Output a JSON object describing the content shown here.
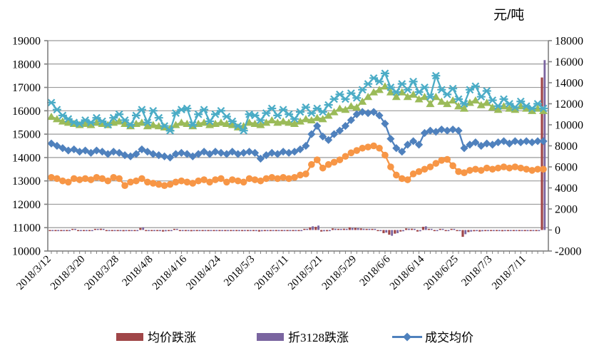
{
  "unit_label": "元/吨",
  "colors": {
    "grid": "#9a9a9a",
    "axis": "#808080",
    "bar_red": "#A04648",
    "bar_purple": "#7A65A0",
    "line_blue": "#4F81BD",
    "line_teal": "#4BACC6",
    "line_green": "#9BBB59",
    "line_orange": "#F79646"
  },
  "chart_data": {
    "type": "combo",
    "title": "",
    "unit": "元/吨",
    "n_points": 88,
    "x_label_every": 6,
    "x_tick_labels": [
      "2018/3/12",
      "2018/3/20",
      "2018/3/28",
      "2018/4/8",
      "2018/4/16",
      "2018/4/24",
      "2018/5/3",
      "2018/5/11",
      "2018/5/21",
      "2018/5/29",
      "2018/6/6",
      "2018/6/14",
      "2018/6/25",
      "2018/7/3",
      "2018/7/11"
    ],
    "left_axis": {
      "min": 10000,
      "max": 19000,
      "step": 1000,
      "ticks": [
        "19000",
        "18000",
        "17000",
        "16000",
        "15000",
        "14000",
        "13000",
        "12000",
        "11000",
        "10000"
      ]
    },
    "right_axis": {
      "min": -2000,
      "max": 18000,
      "step": 2000,
      "ticks": [
        "18000",
        "16000",
        "14000",
        "12000",
        "10000",
        "8000",
        "6000",
        "4000",
        "2000",
        "0",
        "-2000"
      ]
    },
    "legend": [
      {
        "label": "均价跌涨",
        "series": "avg-price-change",
        "swatch": "bar",
        "color": "#A04648"
      },
      {
        "label": "折3128跌涨",
        "series": "zhe3128-change",
        "swatch": "bar",
        "color": "#7A65A0"
      },
      {
        "label": "成交均价",
        "series": "deal-avg-price",
        "swatch": "line-diamond",
        "color": "#4F81BD"
      }
    ],
    "series": [
      {
        "id": "avg-price-change",
        "label": "均价跌涨",
        "type": "bar",
        "axis": "right",
        "color": "#A04648",
        "values": [
          -60,
          -80,
          -100,
          -60,
          80,
          -60,
          -70,
          -50,
          60,
          120,
          -80,
          -60,
          -90,
          -120,
          -70,
          -60,
          200,
          -100,
          -80,
          -70,
          -150,
          -90,
          100,
          -60,
          -80,
          -120,
          -70,
          -60,
          -90,
          -70,
          -80,
          -100,
          -60,
          -90,
          -110,
          -70,
          -80,
          -150,
          -60,
          -80,
          -70,
          -90,
          -60,
          -80,
          -70,
          100,
          250,
          300,
          -150,
          -120,
          150,
          100,
          120,
          250,
          200,
          150,
          100,
          80,
          -100,
          -300,
          -450,
          -350,
          -150,
          150,
          120,
          -150,
          300,
          100,
          -80,
          100,
          -60,
          80,
          -100,
          -650,
          -200,
          -120,
          -150,
          -80,
          -90,
          -100,
          -120,
          -80,
          -100,
          -60,
          -80,
          -100,
          -80,
          14500
        ]
      },
      {
        "id": "zhe3128-change",
        "label": "折3128跌涨",
        "type": "bar",
        "axis": "right",
        "color": "#7A65A0",
        "values": [
          -40,
          -60,
          -90,
          -50,
          60,
          -50,
          -60,
          -40,
          50,
          100,
          -60,
          -50,
          -70,
          -90,
          -60,
          -50,
          250,
          -80,
          -60,
          -50,
          -120,
          -70,
          80,
          -50,
          -60,
          -100,
          -60,
          -50,
          -70,
          -60,
          -70,
          -80,
          -50,
          -70,
          -90,
          -60,
          -70,
          -120,
          -50,
          -60,
          -60,
          -70,
          -50,
          -70,
          -60,
          80,
          350,
          420,
          -120,
          -100,
          120,
          80,
          100,
          200,
          180,
          120,
          80,
          60,
          -80,
          -250,
          -550,
          -300,
          -120,
          120,
          100,
          -120,
          350,
          80,
          -60,
          80,
          -50,
          60,
          -80,
          -400,
          -150,
          -100,
          -120,
          -60,
          -70,
          -80,
          -100,
          -60,
          -80,
          -50,
          -60,
          -80,
          -60,
          16150
        ]
      },
      {
        "id": "orange-avg",
        "label": "",
        "type": "line",
        "marker": "circle",
        "axis": "left",
        "color": "#F79646",
        "values": [
          13150,
          13100,
          13000,
          12950,
          13100,
          13050,
          13100,
          13050,
          13150,
          13100,
          13000,
          13150,
          13100,
          12800,
          12950,
          13000,
          13100,
          12950,
          12900,
          12850,
          12800,
          12850,
          12950,
          13000,
          12950,
          12900,
          13000,
          13050,
          12950,
          13050,
          13100,
          12950,
          13050,
          13000,
          12950,
          13100,
          13050,
          13000,
          13100,
          13150,
          13100,
          13150,
          13100,
          13150,
          13250,
          13300,
          13700,
          13900,
          13550,
          13700,
          13800,
          13900,
          14050,
          14200,
          14300,
          14400,
          14450,
          14500,
          14400,
          14100,
          13600,
          13250,
          13100,
          13050,
          13300,
          13400,
          13500,
          13600,
          13750,
          13880,
          13920,
          13650,
          13400,
          13350,
          13450,
          13500,
          13450,
          13550,
          13500,
          13550,
          13600,
          13550,
          13600,
          13550,
          13500,
          13450,
          13500,
          13500
        ]
      },
      {
        "id": "deal-avg-price",
        "label": "成交均价",
        "type": "line",
        "marker": "diamond",
        "axis": "left",
        "color": "#4F81BD",
        "values": [
          14600,
          14500,
          14400,
          14300,
          14350,
          14250,
          14300,
          14200,
          14300,
          14250,
          14150,
          14250,
          14200,
          14100,
          14050,
          14150,
          14350,
          14250,
          14150,
          14100,
          14050,
          14000,
          14150,
          14200,
          14150,
          14050,
          14150,
          14250,
          14150,
          14250,
          14200,
          14150,
          14250,
          14150,
          14200,
          14250,
          14200,
          13950,
          14100,
          14200,
          14150,
          14250,
          14200,
          14250,
          14350,
          14500,
          15000,
          15350,
          14900,
          14750,
          15000,
          15150,
          15350,
          15600,
          15850,
          15950,
          15900,
          15950,
          15800,
          15450,
          14800,
          14400,
          14250,
          14550,
          14700,
          14550,
          15050,
          15150,
          15100,
          15200,
          15150,
          15200,
          15150,
          14400,
          14550,
          14650,
          14500,
          14600,
          14550,
          14650,
          14700,
          14600,
          14700,
          14650,
          14700,
          14650,
          14700,
          14700
        ]
      },
      {
        "id": "green-index",
        "label": "",
        "type": "line",
        "marker": "triangle",
        "axis": "left",
        "color": "#9BBB59",
        "values": [
          15750,
          15650,
          15550,
          15500,
          15450,
          15400,
          15450,
          15400,
          15500,
          15450,
          15400,
          15500,
          15550,
          15450,
          15350,
          15450,
          15500,
          15350,
          15400,
          15350,
          15300,
          15250,
          15400,
          15500,
          15450,
          15350,
          15450,
          15500,
          15400,
          15450,
          15500,
          15450,
          15400,
          15300,
          15350,
          15500,
          15450,
          15400,
          15500,
          15600,
          15500,
          15550,
          15500,
          15450,
          15550,
          15650,
          15600,
          15700,
          15650,
          15800,
          15950,
          16100,
          16050,
          16200,
          16150,
          16400,
          16600,
          16800,
          16900,
          17050,
          16800,
          16600,
          16800,
          16600,
          16700,
          16500,
          16600,
          16300,
          16600,
          16400,
          16300,
          16450,
          16200,
          16100,
          16350,
          16450,
          16250,
          16350,
          16150,
          16050,
          16200,
          16100,
          16050,
          16200,
          16100,
          16000,
          16100,
          16000
        ]
      },
      {
        "id": "teal-index",
        "label": "",
        "type": "line",
        "marker": "asterisk",
        "axis": "left",
        "color": "#4BACC6",
        "values": [
          16350,
          16050,
          15800,
          15650,
          15500,
          15450,
          15600,
          15500,
          15700,
          15550,
          15400,
          15700,
          15850,
          15600,
          15400,
          15800,
          16050,
          15500,
          16000,
          15700,
          15350,
          15150,
          15900,
          16050,
          16100,
          15400,
          15850,
          16050,
          15550,
          15850,
          16000,
          15750,
          15550,
          15350,
          15150,
          15850,
          15800,
          15600,
          15900,
          16100,
          15800,
          16050,
          15850,
          15650,
          15950,
          16150,
          15900,
          16100,
          15950,
          16250,
          16500,
          16700,
          16500,
          16750,
          16550,
          16900,
          17150,
          17400,
          17250,
          17600,
          17000,
          16800,
          17150,
          16900,
          17250,
          16800,
          17000,
          16600,
          17500,
          16900,
          16700,
          16950,
          16500,
          16300,
          16900,
          17050,
          16600,
          16850,
          16450,
          16200,
          16500,
          16300,
          16150,
          16400,
          16200,
          16100,
          16300,
          16100
        ]
      }
    ]
  }
}
